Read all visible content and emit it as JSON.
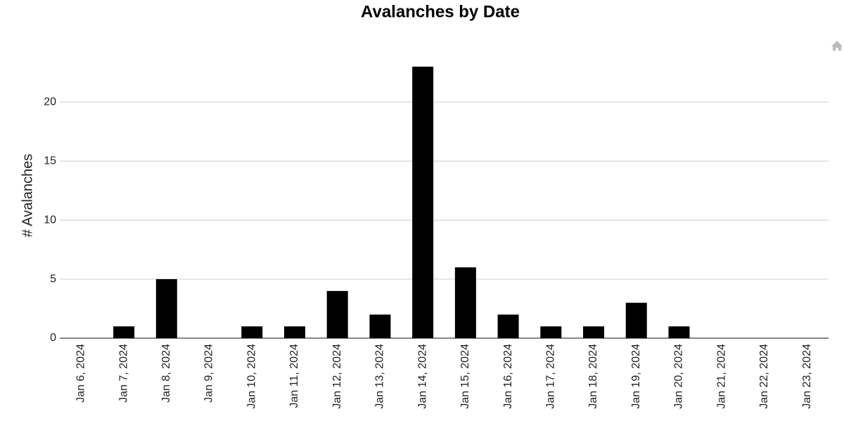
{
  "chart_data": {
    "type": "bar",
    "title": "Avalanches by Date",
    "y_label": "# Avalanches",
    "categories": [
      "Jan 6, 2024",
      "Jan 7, 2024",
      "Jan 8, 2024",
      "Jan 9, 2024",
      "Jan 10, 2024",
      "Jan 11, 2024",
      "Jan 12, 2024",
      "Jan 13, 2024",
      "Jan 14, 2024",
      "Jan 15, 2024",
      "Jan 16, 2024",
      "Jan 17, 2024",
      "Jan 18, 2024",
      "Jan 19, 2024",
      "Jan 20, 2024",
      "Jan 21, 2024",
      "Jan 22, 2024",
      "Jan 23, 2024"
    ],
    "values": [
      0,
      1,
      5,
      0,
      1,
      1,
      4,
      2,
      23,
      6,
      2,
      1,
      1,
      3,
      1,
      0,
      0,
      0
    ],
    "color": "#000000",
    "ylim": [
      0,
      24
    ],
    "yticks": [
      0,
      5,
      10,
      15,
      20
    ],
    "grid": true
  }
}
